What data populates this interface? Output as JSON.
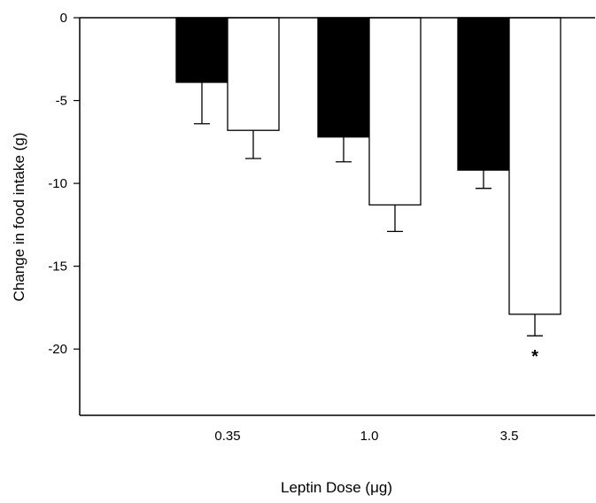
{
  "chart_data": {
    "type": "bar",
    "xlabel": "Leptin Dose (μg)",
    "ylabel": "Change in food intake (g)",
    "ylim": [
      -24,
      0
    ],
    "yticks": [
      0,
      -5,
      -10,
      -15,
      -20
    ],
    "yticklabels": [
      "0",
      "-5",
      "-10",
      "-15",
      "-20"
    ],
    "categories": [
      "0.35",
      "1.0",
      "3.5"
    ],
    "grid": false,
    "legend": "none",
    "series": [
      {
        "color": "#000000",
        "values": [
          -3.9,
          -7.2,
          -9.2
        ],
        "errors": [
          2.5,
          1.5,
          1.1
        ]
      },
      {
        "color": "#ffffff",
        "values": [
          -6.8,
          -11.3,
          -17.9
        ],
        "errors": [
          1.7,
          1.6,
          1.3
        ]
      }
    ],
    "annotations": [
      {
        "text": "*",
        "category": "3.5",
        "series_index": 1
      }
    ]
  }
}
